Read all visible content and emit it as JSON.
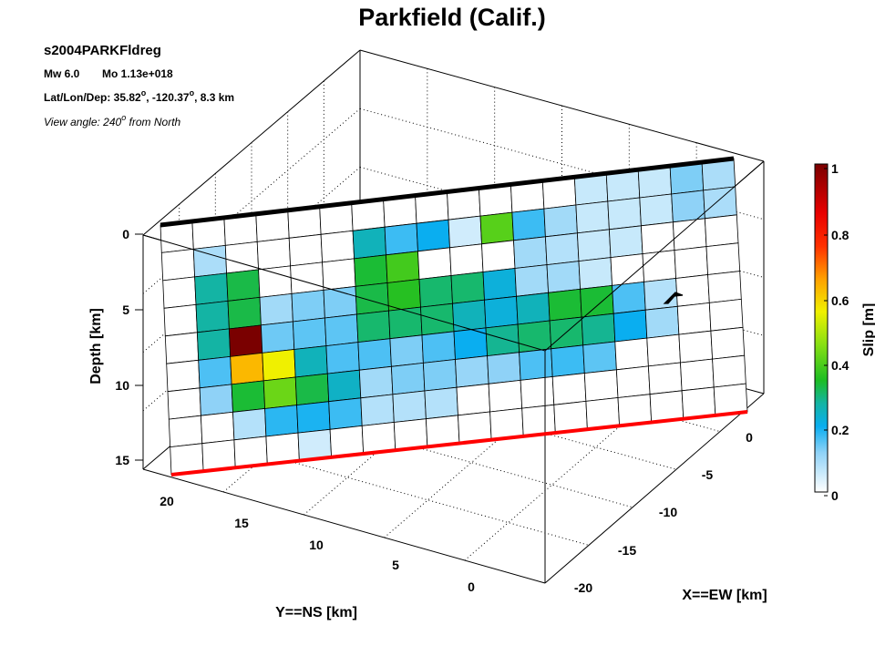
{
  "title": "Parkfield (Calif.)",
  "annotations": {
    "event_id": "s2004PARKFldreg",
    "magnitude": "Mw 6.0",
    "moment": "Mo 1.13e+018",
    "location_prefix": "Lat/Lon/Dep: 35.82",
    "location_mid": ", -120.37",
    "location_suffix": ", 8.3 km",
    "degree_mark": "o",
    "view_prefix": "View angle: 240",
    "view_suffix": " from North"
  },
  "colors": {
    "top_edge": "#000000",
    "bottom_edge": "#ff0000",
    "hypocenter": "#000000"
  },
  "chart_data": {
    "type": "heatmap",
    "view_angle_deg": 240,
    "grid": true,
    "legend": "colorbar-right",
    "axes": {
      "x": {
        "label": "X==EW [km]",
        "ticks": [
          "0",
          "-5",
          "-10",
          "-15",
          "-20"
        ]
      },
      "y": {
        "label": "Y==NS [km]",
        "ticks": [
          "20",
          "15",
          "10",
          "5",
          "0"
        ]
      },
      "z": {
        "label": "Depth [km]",
        "ticks": [
          "0",
          "5",
          "10",
          "15"
        ]
      }
    },
    "colorbar": {
      "label": "Slip [m]",
      "ticks": [
        "1",
        "0.8",
        "0.6",
        "0.4",
        "0.2",
        "0"
      ],
      "range": [
        0,
        1
      ]
    },
    "fault_grid": {
      "columns_along_strike": 18,
      "rows_down_dip": 9
    },
    "slip_m": [
      [
        0.0,
        0.0,
        0.0,
        0.0,
        0.0,
        0.0,
        0.0,
        0.0,
        0.0,
        0.0,
        0.0,
        0.0,
        0.0,
        0.06,
        0.06,
        0.06,
        0.13,
        0.09
      ],
      [
        0.0,
        0.09,
        0.0,
        0.0,
        0.0,
        0.0,
        0.25,
        0.17,
        0.2,
        0.05,
        0.4,
        0.17,
        0.1,
        0.06,
        0.06,
        0.06,
        0.12,
        0.09
      ],
      [
        0.0,
        0.27,
        0.32,
        0.0,
        0.0,
        0.0,
        0.33,
        0.38,
        0.0,
        0.0,
        0.0,
        0.1,
        0.08,
        0.06,
        0.06,
        0.0,
        0.0,
        0.0
      ],
      [
        0.0,
        0.27,
        0.32,
        0.1,
        0.13,
        0.13,
        0.32,
        0.35,
        0.3,
        0.3,
        0.22,
        0.1,
        0.1,
        0.06,
        0.0,
        0.0,
        0.0,
        0.0
      ],
      [
        0.0,
        0.27,
        1.0,
        0.14,
        0.15,
        0.15,
        0.3,
        0.3,
        0.3,
        0.25,
        0.22,
        0.25,
        0.33,
        0.33,
        0.16,
        0.08,
        0.0,
        0.0
      ],
      [
        0.0,
        0.16,
        0.62,
        0.55,
        0.25,
        0.16,
        0.16,
        0.13,
        0.16,
        0.2,
        0.28,
        0.3,
        0.3,
        0.28,
        0.2,
        0.1,
        0.0,
        0.0
      ],
      [
        0.0,
        0.12,
        0.33,
        0.42,
        0.32,
        0.24,
        0.1,
        0.13,
        0.13,
        0.11,
        0.12,
        0.16,
        0.17,
        0.15,
        0.0,
        0.0,
        0.0,
        0.0
      ],
      [
        0.0,
        0.0,
        0.08,
        0.18,
        0.19,
        0.17,
        0.08,
        0.08,
        0.08,
        0.0,
        0.0,
        0.0,
        0.0,
        0.0,
        0.0,
        0.0,
        0.0,
        0.0
      ],
      [
        0.0,
        0.0,
        0.0,
        0.0,
        0.05,
        0.0,
        0.0,
        0.0,
        0.0,
        0.0,
        0.0,
        0.0,
        0.0,
        0.0,
        0.0,
        0.0,
        0.0,
        0.0
      ]
    ]
  }
}
